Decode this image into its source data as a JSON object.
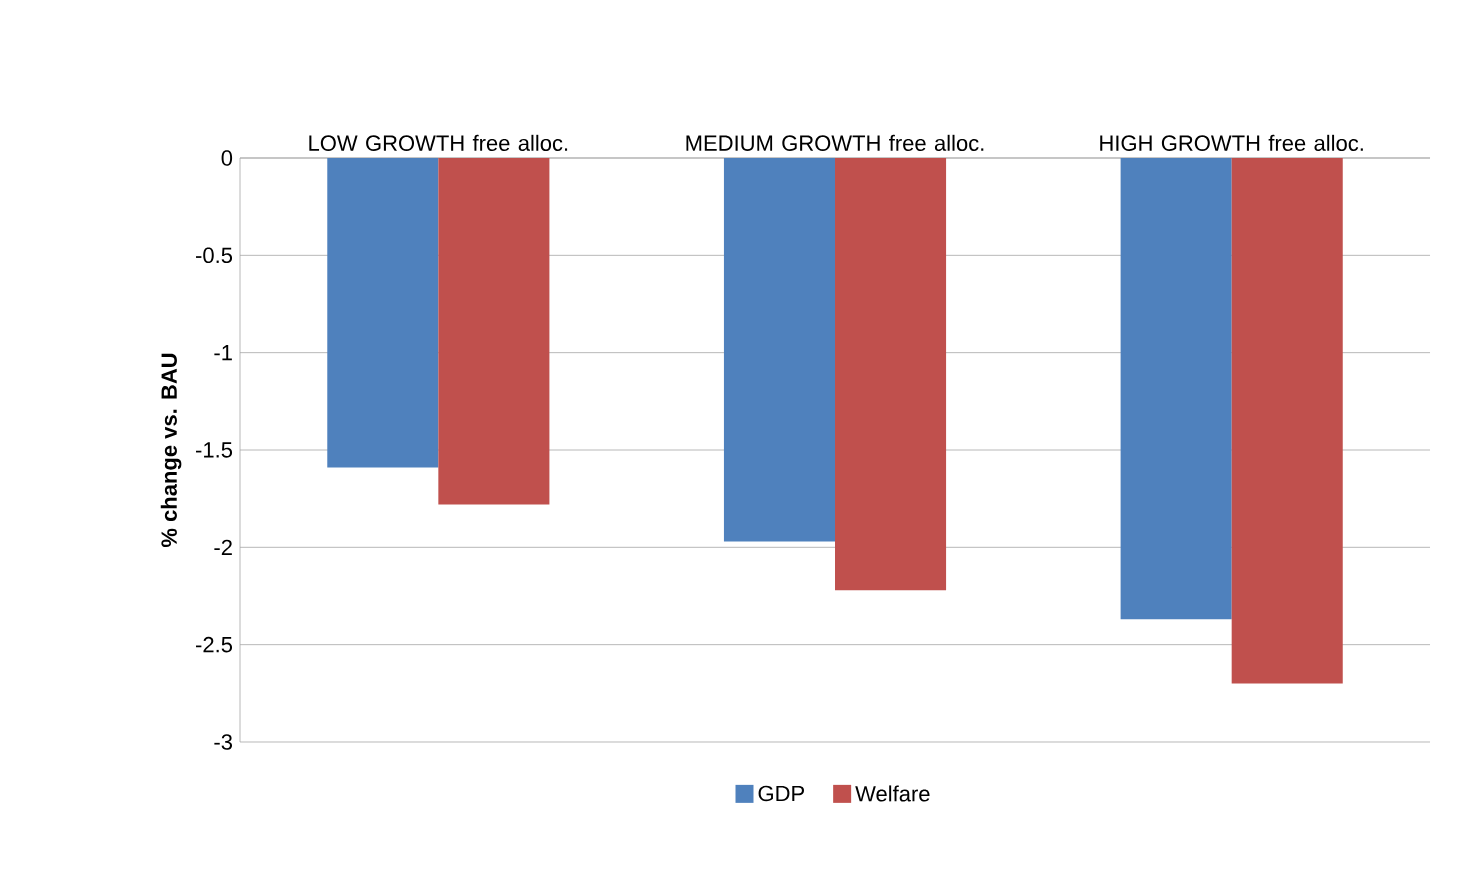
{
  "chart_data": {
    "type": "bar",
    "ylabel": "% change vs. BAU",
    "categories": [
      "LOW GROWTH free alloc.",
      "MEDIUM GROWTH free alloc.",
      "HIGH GROWTH free alloc."
    ],
    "series": [
      {
        "name": "GDP",
        "color": "#4f81bd",
        "values": [
          -1.59,
          -1.97,
          -2.37
        ]
      },
      {
        "name": "Welfare",
        "color": "#c0504d",
        "values": [
          -1.78,
          -2.22,
          -2.7
        ]
      }
    ],
    "ylim": [
      -3,
      0
    ],
    "yticks": [
      -3,
      -2.5,
      -2,
      -1.5,
      -1,
      -0.5,
      0
    ],
    "grid": "y",
    "legend": "bottom"
  }
}
